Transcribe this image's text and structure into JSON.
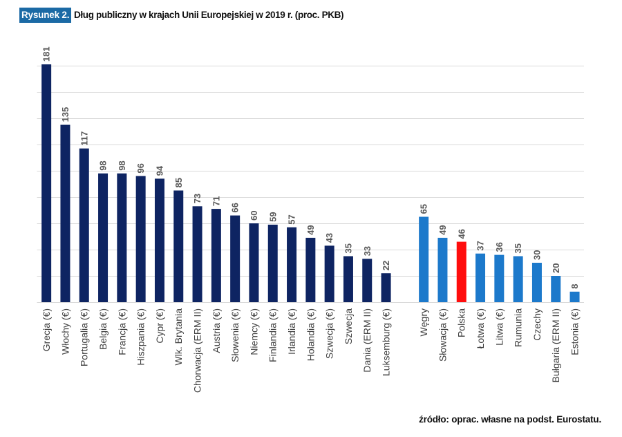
{
  "figure": {
    "label": "Rysunek 2."
  },
  "source": "źródło: oprac. własne na podst. Eurostatu.",
  "colors": {
    "figure_label_bg": "#1b6aa5",
    "grid": "#d9d9d9"
  },
  "chart_data": {
    "type": "bar",
    "title": "Dług publiczny w krajach Unii Europejskiej w 2019 r. (proc. PKB)",
    "ylim": [
      0,
      180
    ],
    "grid": true,
    "grid_step": 20,
    "legend": "none",
    "data_labels": true,
    "groups": [
      {
        "color": "#0e2462",
        "categories": [
          "Grecja (€)",
          "Włochy (€)",
          "Portugalia (€)",
          "Belgia (€)",
          "Francja (€)",
          "Hiszpania (€)",
          "Cypr (€)",
          "Wlk. Brytania",
          "Chorwacja (ERM II)",
          "Austria (€)",
          "Słowenia (€)",
          "Niemcy (€)",
          "Finlandia (€)",
          "Irlandia (€)",
          "Holandia (€)",
          "Szwecja (€)",
          "Szwecja",
          "Dania (ERM II)",
          "Luksemburg (€)"
        ],
        "values": [
          181,
          135,
          117,
          98,
          98,
          96,
          94,
          85,
          73,
          71,
          66,
          60,
          59,
          57,
          49,
          43,
          35,
          33,
          22
        ]
      },
      {
        "color": "#1c79cb",
        "categories": [
          "Węgry",
          "Słowacja (€)",
          "Polska",
          "Łotwa (€)",
          "Litwa (€)",
          "Rumunia",
          "Czechy",
          "Bułgaria (ERM II)",
          "Estonia (€)"
        ],
        "values": [
          65,
          49,
          46,
          37,
          36,
          35,
          30,
          20,
          8
        ],
        "highlight": {
          "category": "Polska",
          "color": "#ff0d0d"
        }
      }
    ]
  }
}
